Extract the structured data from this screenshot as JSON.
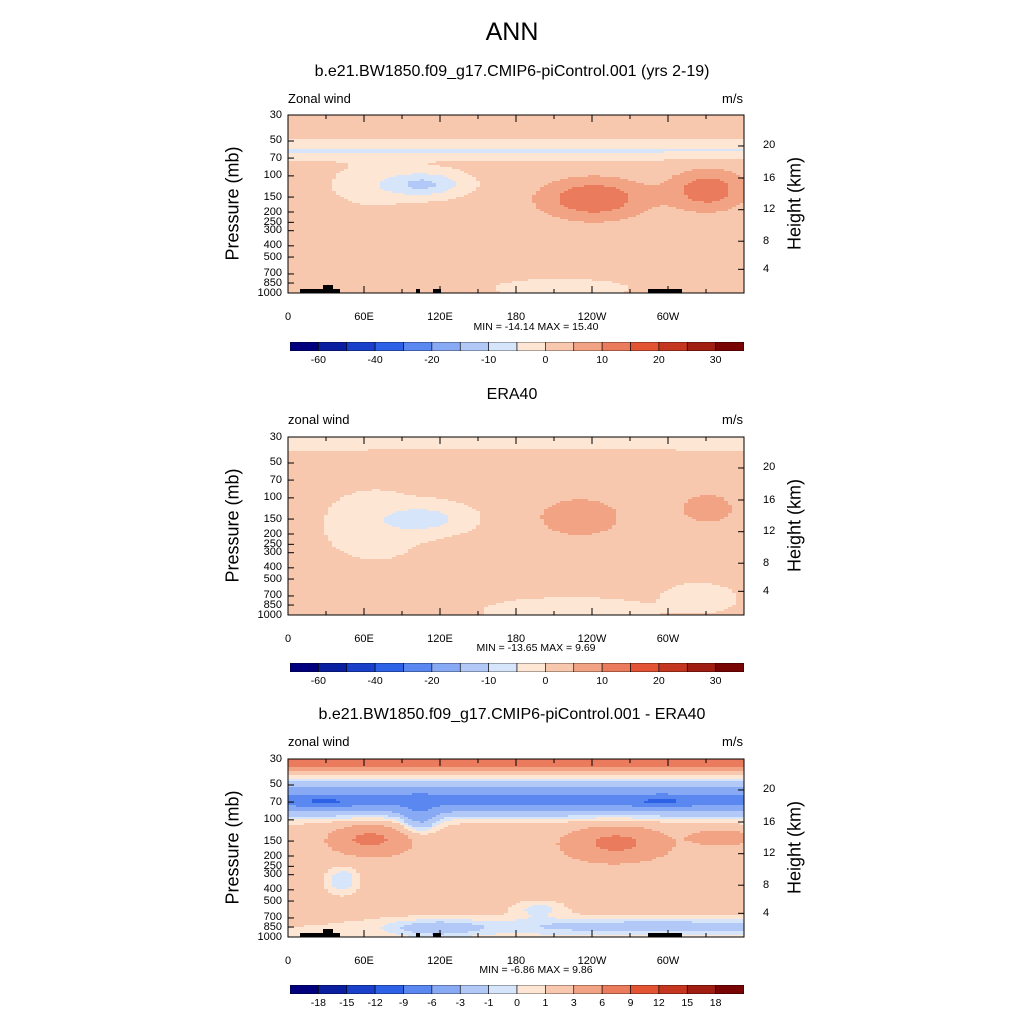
{
  "figure_title": "ANN",
  "chart_data": [
    {
      "type": "heatmap",
      "title": "b.e21.BW1850.f09_g17.CMIP6-piControl.001 (yrs 2-19)",
      "left_label": "Zonal wind",
      "right_label": "m/s",
      "ylabel": "Pressure (mb)",
      "ylabel_right": "Height (km)",
      "x_ticks": [
        "0",
        "60E",
        "120E",
        "180",
        "120W",
        "60W"
      ],
      "y_ticks": [
        "30",
        "50",
        "70",
        "100",
        "150",
        "200",
        "250",
        "300",
        "400",
        "500",
        "700",
        "850",
        "1000"
      ],
      "height_ticks": [
        "20",
        "16",
        "12",
        "8",
        "4"
      ],
      "stats": "MIN = -14.14  MAX =  15.40",
      "colorbar_labels": [
        "-60",
        "-40",
        "-20",
        "-10",
        "0",
        "10",
        "20",
        "30"
      ],
      "field": "model"
    },
    {
      "type": "heatmap",
      "title": "ERA40",
      "left_label": "zonal wind",
      "right_label": "m/s",
      "ylabel": "Pressure (mb)",
      "ylabel_right": "Height (km)",
      "x_ticks": [
        "0",
        "60E",
        "120E",
        "180",
        "120W",
        "60W"
      ],
      "y_ticks": [
        "30",
        "50",
        "70",
        "100",
        "150",
        "200",
        "250",
        "300",
        "400",
        "500",
        "700",
        "850",
        "1000"
      ],
      "height_ticks": [
        "20",
        "16",
        "12",
        "8",
        "4"
      ],
      "stats": "MIN = -13.65  MAX =   9.69",
      "colorbar_labels": [
        "-60",
        "-40",
        "-20",
        "-10",
        "0",
        "10",
        "20",
        "30"
      ],
      "field": "obs"
    },
    {
      "type": "heatmap",
      "title": "b.e21.BW1850.f09_g17.CMIP6-piControl.001 - ERA40",
      "left_label": "zonal wind",
      "right_label": "m/s",
      "ylabel": "Pressure (mb)",
      "ylabel_right": "Height (km)",
      "x_ticks": [
        "0",
        "60E",
        "120E",
        "180",
        "120W",
        "60W"
      ],
      "y_ticks": [
        "30",
        "50",
        "70",
        "100",
        "150",
        "200",
        "250",
        "300",
        "400",
        "500",
        "700",
        "850",
        "1000"
      ],
      "height_ticks": [
        "20",
        "16",
        "12",
        "8",
        "4"
      ],
      "stats": "MIN =  -6.86  MAX =   9.86",
      "colorbar_labels": [
        "-18",
        "-15",
        "-12",
        "-9",
        "-6",
        "-3",
        "-1",
        "0",
        "1",
        "3",
        "6",
        "9",
        "12",
        "15",
        "18"
      ],
      "field": "diff"
    }
  ],
  "colors": {
    "palette": [
      "#00007f",
      "#0a1ea0",
      "#1a3fc8",
      "#2e62e6",
      "#5a88f0",
      "#88aaf4",
      "#b2c8f6",
      "#d6e5f9",
      "#fde6d4",
      "#f8c8ae",
      "#f1a384",
      "#ea7b5c",
      "#e35434",
      "#c53620",
      "#a01d12",
      "#780404"
    ],
    "terrain": "#000000"
  }
}
